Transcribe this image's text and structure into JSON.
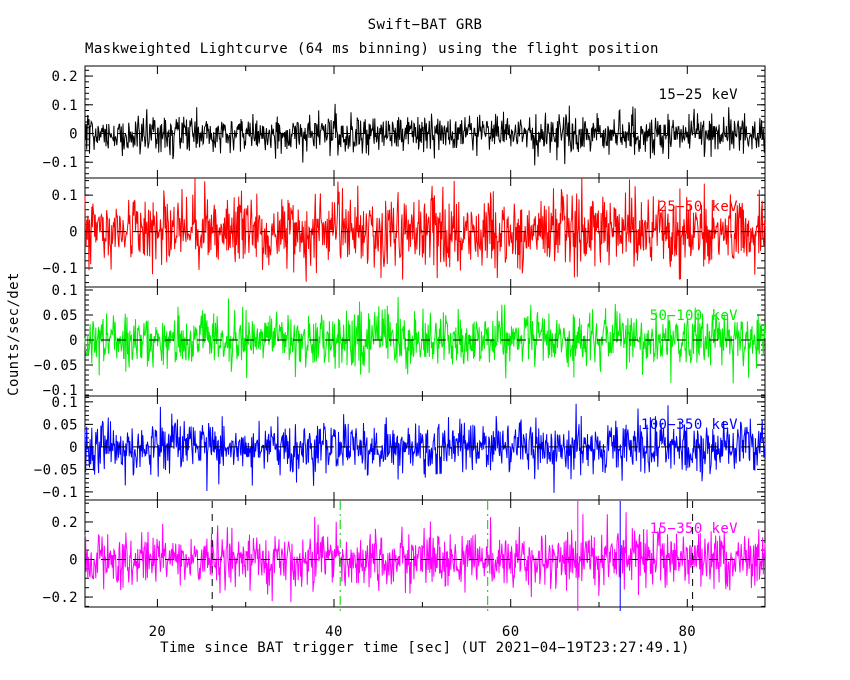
{
  "chart_data": {
    "type": "line",
    "title": "Swift−BAT GRB",
    "subtitle": "Maskweighted Lightcurve (64 ms binning) using the flight position",
    "xlabel": "Time since BAT trigger time [sec] (UT 2021−04−19T23:27:49.1)",
    "ylabel": "Counts/sec/det",
    "x_range": [
      11.8,
      88.8
    ],
    "bin_seconds": 0.064,
    "n_points": 1200,
    "grid": false,
    "legend": "in-panel colored band labels, right side",
    "description": "Five stacked Swift-BAT energy-band panels of mask-weighted count rate; each series is zero-centered noise with no obvious burst, dashed black line at zero rate in every panel.",
    "x_ticks": [
      {
        "t": 20,
        "label": "20"
      },
      {
        "t": 40,
        "label": "40"
      },
      {
        "t": 60,
        "label": "60"
      },
      {
        "t": 80,
        "label": "80"
      }
    ],
    "x_minor_tick_step": 10,
    "panels": [
      {
        "label": "15−25 keV",
        "color": "#000000",
        "ylim": [
          -0.155,
          0.235
        ],
        "yticks": [
          {
            "v": 0.2,
            "label": "0.2"
          },
          {
            "v": 0.1,
            "label": "0.1"
          },
          {
            "v": 0,
            "label": "0"
          },
          {
            "v": -0.1,
            "label": "−0.1"
          }
        ],
        "y_minor_step": 0.02,
        "baseline": 0,
        "noise_sigma": 0.033,
        "seed": 101
      },
      {
        "label": "25−50 keV",
        "color": "#ff0000",
        "ylim": [
          -0.152,
          0.147
        ],
        "yticks": [
          {
            "v": 0.1,
            "label": "0.1"
          },
          {
            "v": 0,
            "label": "0"
          },
          {
            "v": -0.1,
            "label": "−0.1"
          }
        ],
        "y_minor_step": 0.02,
        "baseline": 0,
        "noise_sigma": 0.05,
        "seed": 202
      },
      {
        "label": "50−100 keV",
        "color": "#00ee00",
        "ylim": [
          -0.112,
          0.106
        ],
        "yticks": [
          {
            "v": 0.1,
            "label": "0.1"
          },
          {
            "v": 0.05,
            "label": "0.05"
          },
          {
            "v": 0,
            "label": "0"
          },
          {
            "v": -0.05,
            "label": "−0.05"
          },
          {
            "v": -0.1,
            "label": "−0.1"
          }
        ],
        "y_minor_step": 0.01,
        "baseline": 0,
        "noise_sigma": 0.028,
        "seed": 303
      },
      {
        "label": "100−350 keV",
        "color": "#0000ff",
        "ylim": [
          -0.118,
          0.113
        ],
        "yticks": [
          {
            "v": 0.1,
            "label": "0.1"
          },
          {
            "v": 0.05,
            "label": "0.05"
          },
          {
            "v": 0,
            "label": "0"
          },
          {
            "v": -0.05,
            "label": "−0.05"
          },
          {
            "v": -0.1,
            "label": "−0.1"
          }
        ],
        "y_minor_step": 0.01,
        "baseline": 0,
        "noise_sigma": 0.029,
        "seed": 404
      },
      {
        "label": "15−350 keV",
        "color": "#ff00ff",
        "ylim": [
          -0.253,
          0.317
        ],
        "yticks": [
          {
            "v": 0.2,
            "label": "0.2"
          },
          {
            "v": 0,
            "label": "0"
          },
          {
            "v": -0.2,
            "label": "−0.2"
          }
        ],
        "y_minor_step": 0.05,
        "baseline": 0,
        "noise_sigma": 0.075,
        "seed": 505
      }
    ],
    "zero_line": {
      "color": "#000000",
      "style": "dashed"
    },
    "markers_bottom_panel": [
      {
        "t": 26.2,
        "color": "#000000",
        "style": "dashed"
      },
      {
        "t": 40.7,
        "color": "#00cc00",
        "style": "dash-dot"
      },
      {
        "t": 57.4,
        "color": "#00cc00",
        "style": "dash-dot"
      },
      {
        "t": 67.6,
        "color": "#ff00ff",
        "style": "solid"
      },
      {
        "t": 72.4,
        "color": "#0000ff",
        "style": "solid"
      },
      {
        "t": 80.6,
        "color": "#000000",
        "style": "dashed"
      }
    ]
  }
}
